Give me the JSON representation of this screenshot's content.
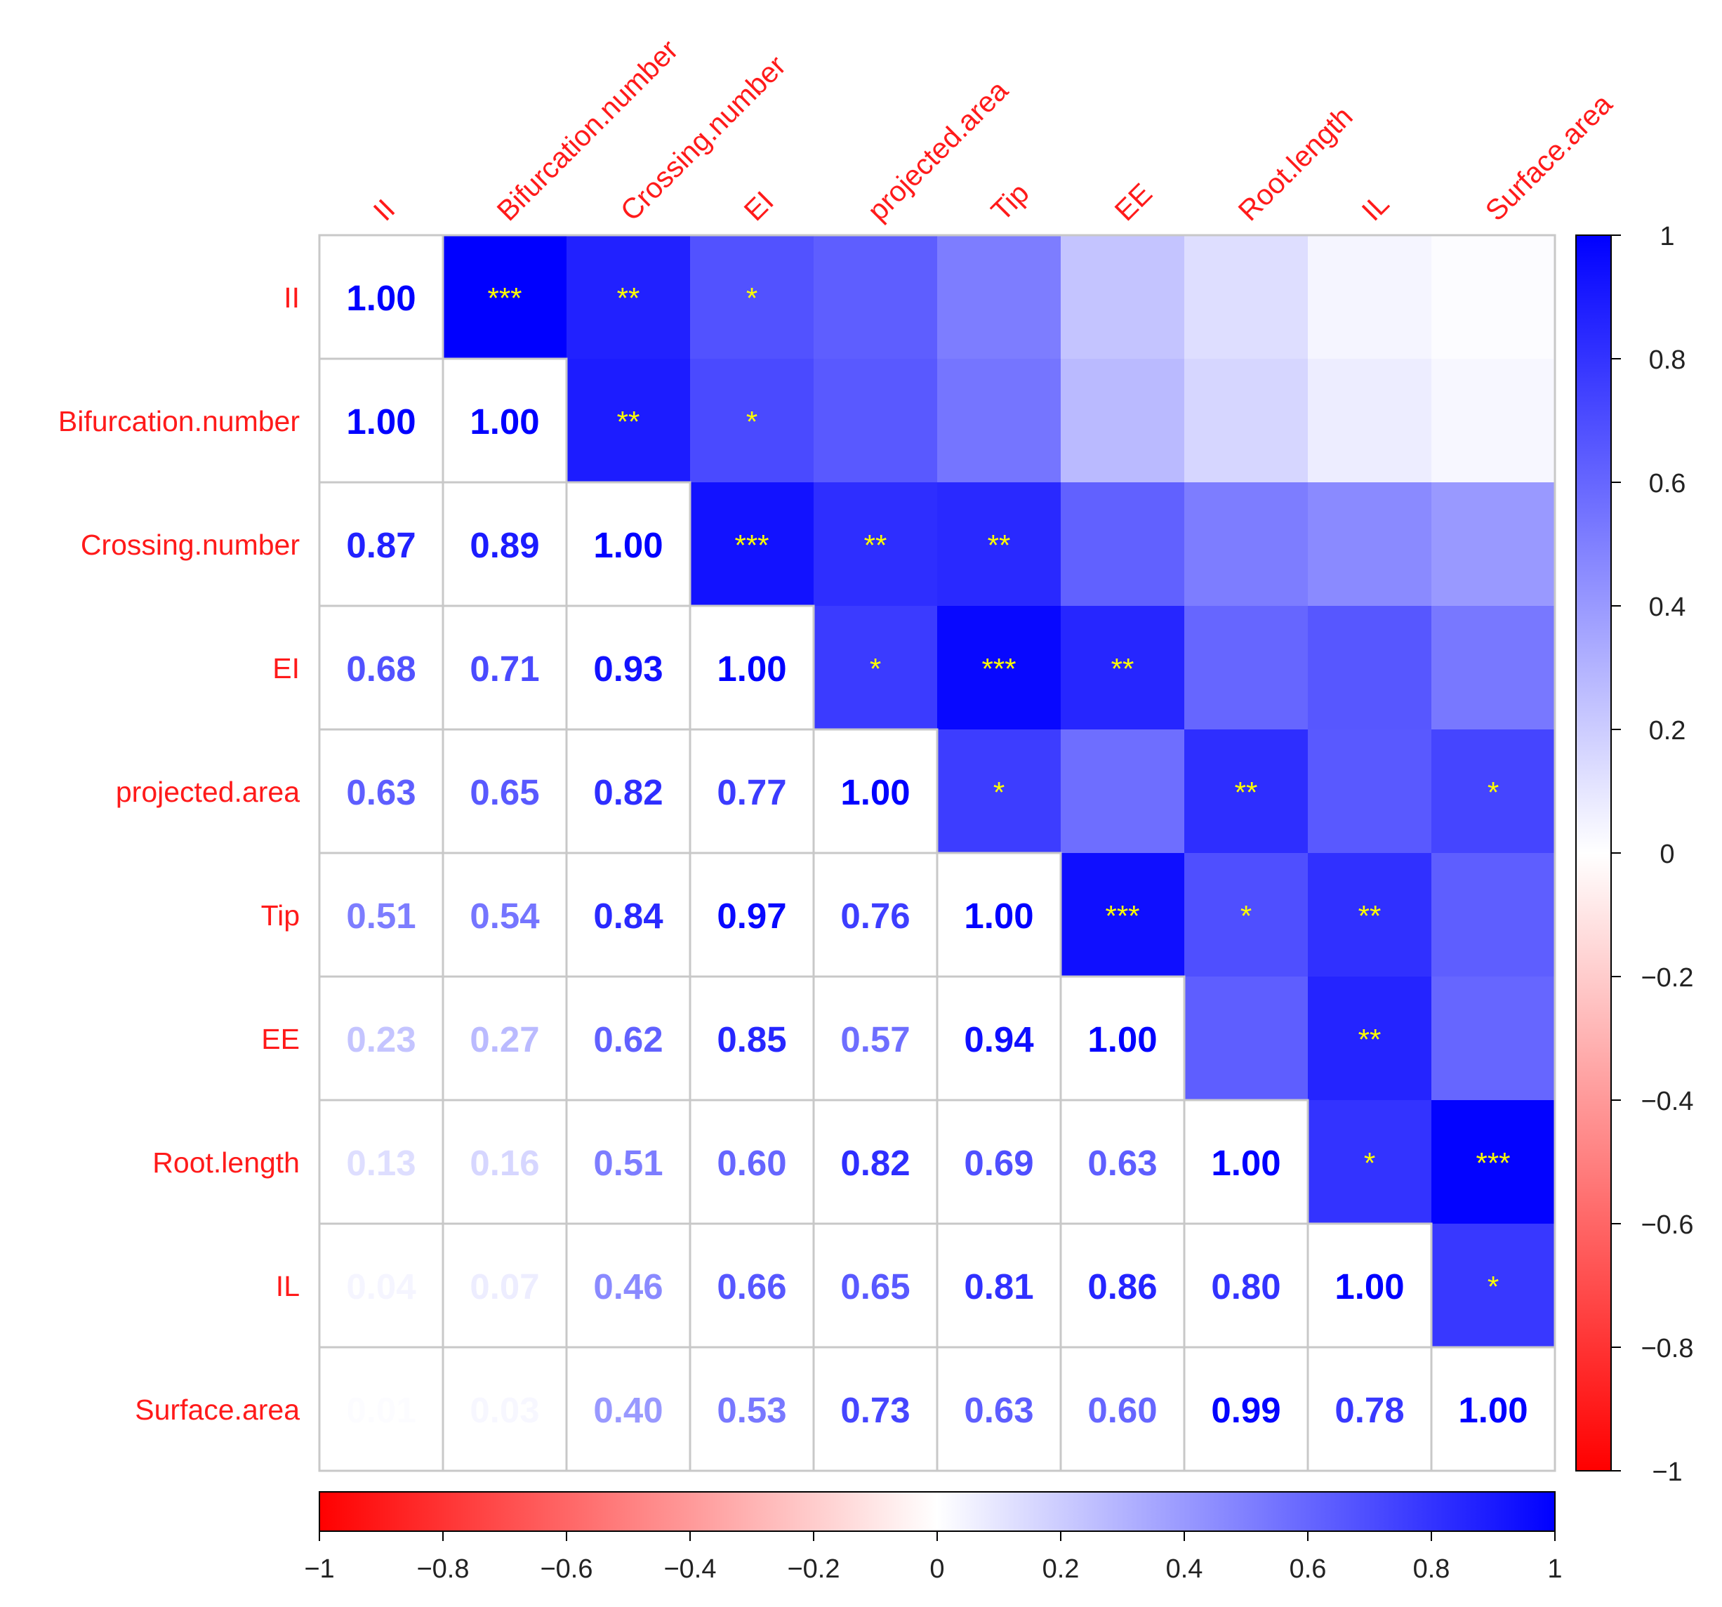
{
  "chart_data": {
    "type": "heatmap",
    "subtype": "correlation-matrix",
    "variables": [
      "II",
      "Bifurcation.number",
      "Crossing.number",
      "EI",
      "projected.area",
      "Tip",
      "EE",
      "Root.length",
      "IL",
      "Surface.area"
    ],
    "lower_triangle_values": [
      [
        "1.00"
      ],
      [
        "1.00",
        "1.00"
      ],
      [
        "0.87",
        "0.89",
        "1.00"
      ],
      [
        "0.68",
        "0.71",
        "0.93",
        "1.00"
      ],
      [
        "0.63",
        "0.65",
        "0.82",
        "0.77",
        "1.00"
      ],
      [
        "0.51",
        "0.54",
        "0.84",
        "0.97",
        "0.76",
        "1.00"
      ],
      [
        "0.23",
        "0.27",
        "0.62",
        "0.85",
        "0.57",
        "0.94",
        "1.00"
      ],
      [
        "0.13",
        "0.16",
        "0.51",
        "0.60",
        "0.82",
        "0.69",
        "0.63",
        "1.00"
      ],
      [
        "0.04",
        "0.07",
        "0.46",
        "0.66",
        "0.65",
        "0.81",
        "0.86",
        "0.80",
        "1.00"
      ],
      [
        "0.01",
        "0.03",
        "0.40",
        "0.53",
        "0.73",
        "0.63",
        "0.60",
        "0.99",
        "0.78",
        "1.00"
      ]
    ],
    "upper_triangle_significance": [
      [
        "***",
        "**",
        "*",
        "",
        "",
        "",
        "",
        "",
        ""
      ],
      [
        "**",
        "*",
        "",
        "",
        "",
        "",
        "",
        ""
      ],
      [
        "***",
        "**",
        "**",
        "",
        "",
        "",
        ""
      ],
      [
        "*",
        "***",
        "**",
        "",
        "",
        ""
      ],
      [
        "*",
        "",
        "**",
        "",
        "*"
      ],
      [
        "***",
        "*",
        "**",
        ""
      ],
      [
        "",
        "**",
        ""
      ],
      [
        "*",
        "***"
      ],
      [
        "*"
      ]
    ],
    "color_scale": {
      "range": [
        -1,
        1
      ],
      "low_color": "#ff0000",
      "mid_color": "#ffffff",
      "high_color": "#0000ff",
      "vertical_ticks": [
        "1",
        "0.8",
        "0.6",
        "0.4",
        "0.2",
        "0",
        "−0.2",
        "−0.4",
        "−0.6",
        "−0.8",
        "−1"
      ],
      "horizontal_ticks": [
        "−1",
        "−0.8",
        "−0.6",
        "−0.4",
        "−0.2",
        "0",
        "0.2",
        "0.4",
        "0.6",
        "0.8",
        "1"
      ]
    },
    "colors": {
      "label_color": "#ff1a1a",
      "star_color": "#ffff00",
      "grid_color": "#c8c8c8"
    }
  }
}
